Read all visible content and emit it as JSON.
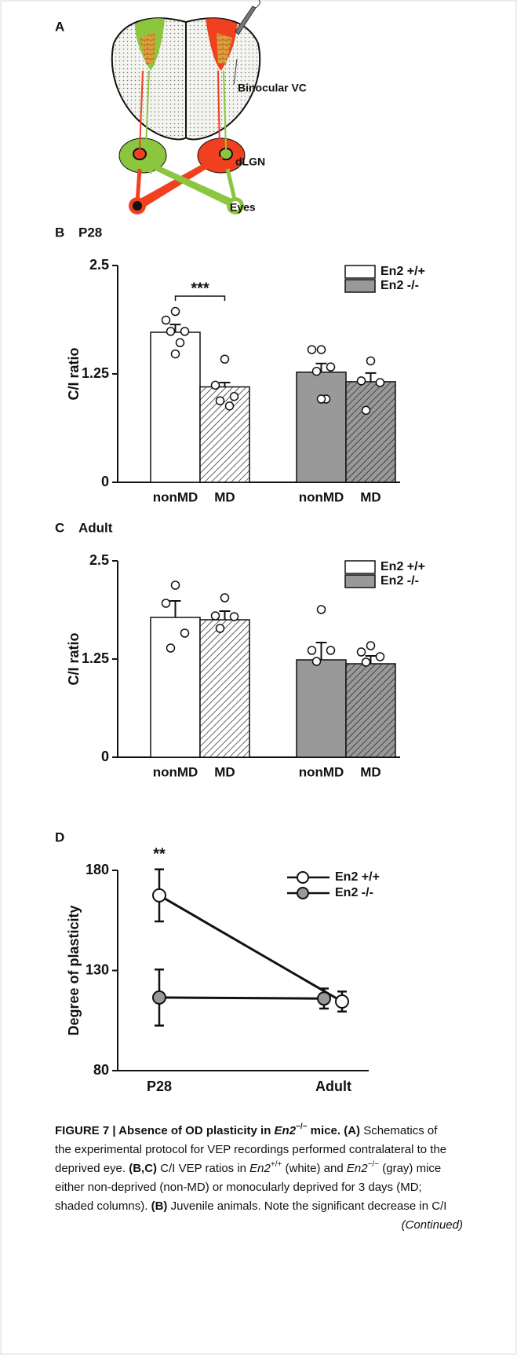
{
  "diagram": {
    "label": "A",
    "labels": [
      "Binocular VC",
      "dLGN",
      "Eyes"
    ]
  },
  "chart_data": [
    {
      "type": "bar",
      "label": "B",
      "title": "P28",
      "ylabel": "C/I ratio",
      "categories": [
        "nonMD",
        "MD"
      ],
      "hatch": [
        false,
        true
      ],
      "series": [
        {
          "name": "En2 +/+",
          "color": "#ffffff",
          "values": [
            1.73,
            1.1
          ],
          "errors": [
            0.09,
            0.05
          ],
          "points": [
            [
              1.97,
              1.87,
              1.74,
              1.74,
              1.61,
              1.48
            ],
            [
              1.42,
              1.12,
              0.99,
              0.94,
              0.88
            ]
          ]
        },
        {
          "name": "En2 -/-",
          "color": "#999999",
          "values": [
            1.27,
            1.16
          ],
          "errors": [
            0.1,
            0.1
          ],
          "points": [
            [
              1.53,
              1.53,
              1.33,
              1.28,
              0.96,
              0.96
            ],
            [
              1.4,
              1.17,
              1.15,
              0.83
            ]
          ]
        }
      ],
      "ylim": [
        0,
        2.5
      ],
      "yticks": [
        2.5,
        1.25,
        0
      ],
      "annotation": "***"
    },
    {
      "type": "bar",
      "label": "C",
      "title": "Adult",
      "ylabel": "C/I ratio",
      "categories": [
        "nonMD",
        "MD"
      ],
      "hatch": [
        false,
        true
      ],
      "series": [
        {
          "name": "En2 +/+",
          "color": "#ffffff",
          "values": [
            1.78,
            1.75
          ],
          "errors": [
            0.21,
            0.11
          ],
          "points": [
            [
              2.19,
              1.96,
              1.58,
              1.39
            ],
            [
              2.03,
              1.8,
              1.79,
              1.64
            ]
          ]
        },
        {
          "name": "En2 -/-",
          "color": "#999999",
          "values": [
            1.24,
            1.19
          ],
          "errors": [
            0.22,
            0.1
          ],
          "points": [
            [
              1.88,
              1.36,
              1.36,
              1.22
            ],
            [
              1.42,
              1.34,
              1.28,
              1.21
            ]
          ]
        }
      ],
      "ylim": [
        0,
        2.5
      ],
      "yticks": [
        2.5,
        1.25,
        0
      ]
    },
    {
      "type": "line",
      "label": "D",
      "ylabel": "Degree of plasticity",
      "categories": [
        "P28",
        "Adult"
      ],
      "series": [
        {
          "name": "En2 +/+",
          "color": "#ffffff",
          "values": [
            167.5,
            114.5
          ],
          "errors": [
            13,
            5
          ]
        },
        {
          "name": "En2 -/-",
          "color": "#999999",
          "values": [
            116.5,
            116
          ],
          "errors": [
            14,
            5
          ]
        }
      ],
      "ylim": [
        80,
        180
      ],
      "yticks": [
        180,
        130,
        80
      ],
      "annotation": "**"
    }
  ],
  "caption": {
    "lines": [
      [
        {
          "text": "FIGURE 7 | Absence of OD plasticity in ",
          "bold": true
        },
        {
          "text": "En2",
          "bold": true,
          "italic": true
        },
        {
          "text": "−/−",
          "bold": true,
          "sup": true
        },
        {
          "text": " mice. (A)",
          "bold": true
        },
        {
          "text": " Schematics of"
        }
      ],
      [
        {
          "text": "the experimental protocol for VEP recordings performed contralateral to the"
        }
      ],
      [
        {
          "text": "deprived eye. "
        },
        {
          "text": "(B,C)",
          "bold": true
        },
        {
          "text": " C/I VEP ratios in "
        },
        {
          "text": "En2",
          "italic": true
        },
        {
          "text": "+/+",
          "sup": true
        },
        {
          "text": " (white) and "
        },
        {
          "text": "En2",
          "italic": true
        },
        {
          "text": "−/−",
          "sup": true
        },
        {
          "text": " (gray) mice"
        }
      ],
      [
        {
          "text": "either non-deprived (non-MD) or monocularly deprived for 3 days (MD;"
        }
      ],
      [
        {
          "text": "shaded columns). "
        },
        {
          "text": "(B)",
          "bold": true
        },
        {
          "text": " Juvenile animals. Note the significant decrease in C/I"
        }
      ]
    ],
    "continued": "(Continued)"
  }
}
